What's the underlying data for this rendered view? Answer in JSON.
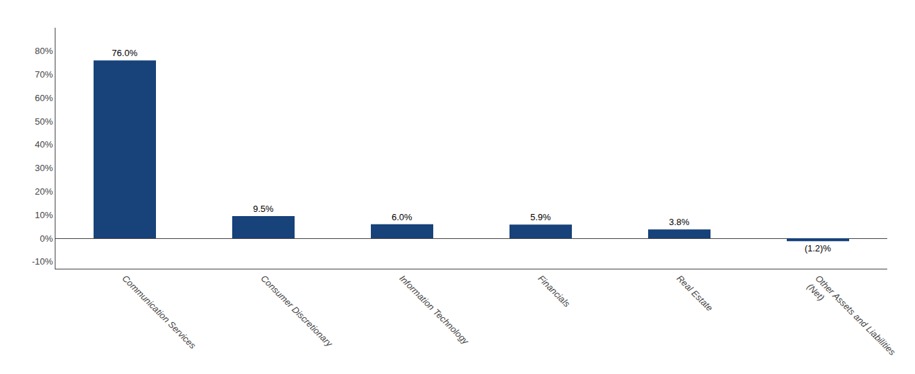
{
  "chart_data": {
    "type": "bar",
    "categories": [
      "Communication Services",
      "Consumer Discretionary",
      "Information Technology",
      "Financials",
      "Real Estate",
      "Other Assets and Liabilities\n(Net)"
    ],
    "values": [
      76.0,
      9.5,
      6.0,
      5.9,
      3.8,
      -1.2
    ],
    "value_labels": [
      "76.0%",
      "9.5%",
      "6.0%",
      "5.9%",
      "3.8%",
      "(1.2)%"
    ],
    "color": "#17427a",
    "ylim": [
      -13,
      90
    ],
    "yticks": [
      {
        "value": -10,
        "label": "-10%"
      },
      {
        "value": 0,
        "label": "0%"
      },
      {
        "value": 10,
        "label": "10%"
      },
      {
        "value": 20,
        "label": "20%"
      },
      {
        "value": 30,
        "label": "30%"
      },
      {
        "value": 40,
        "label": "40%"
      },
      {
        "value": 50,
        "label": "50%"
      },
      {
        "value": 60,
        "label": "60%"
      },
      {
        "value": 70,
        "label": "70%"
      },
      {
        "value": 80,
        "label": "80%"
      }
    ],
    "grid": false,
    "data_labels": true
  }
}
